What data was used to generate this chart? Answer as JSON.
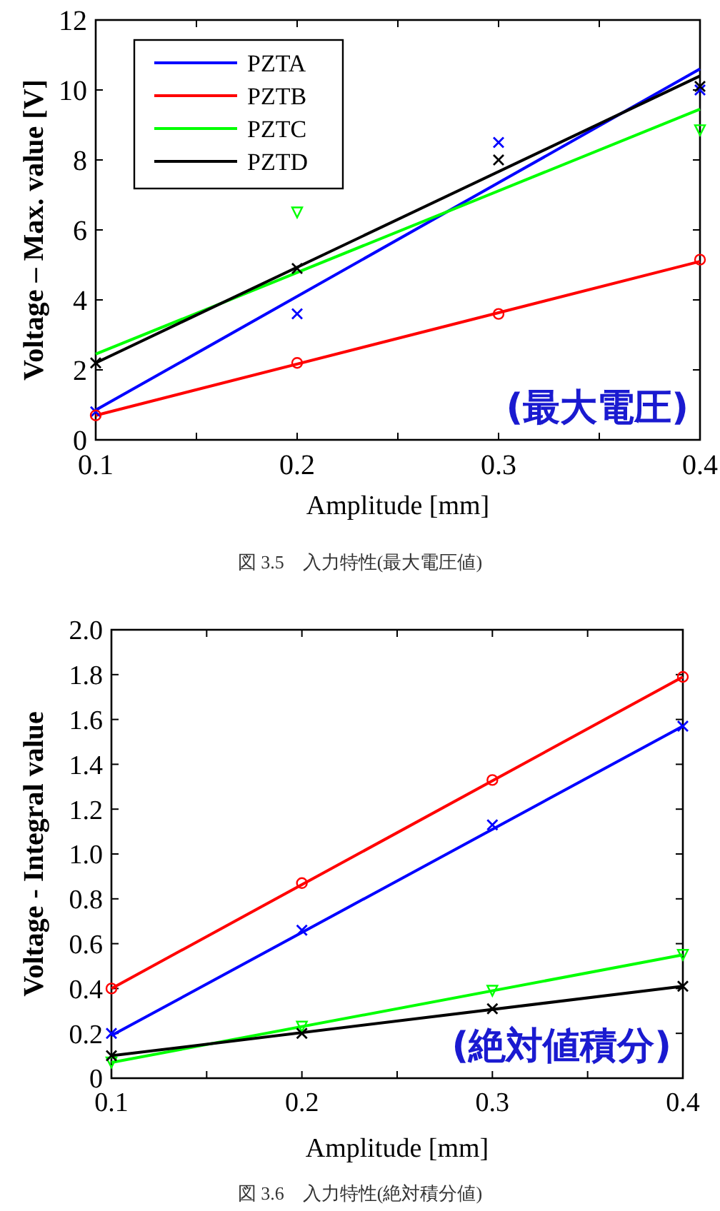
{
  "chart_data": [
    {
      "type": "line",
      "xlabel": "Amplitude [mm]",
      "ylabel": "Voltage – Max. value [V]",
      "xlim": [
        0.1,
        0.4
      ],
      "xticks": [
        0.1,
        {
          "value": 0.15,
          "label": null
        },
        0.2,
        {
          "value": 0.25,
          "label": null
        },
        0.3,
        {
          "value": 0.35,
          "label": null
        },
        0.4
      ],
      "ylim": [
        0,
        12
      ],
      "yticks": [
        0,
        2,
        4,
        6,
        8,
        10,
        12
      ],
      "legend": "top left",
      "annotations": [
        "(最大電圧)",
        "図 3.5　入力特性(最大電圧値)"
      ],
      "series": [
        {
          "name": "PZTA",
          "color": "#0000ff",
          "x": [
            0.1,
            0.4
          ],
          "values": [
            0.85,
            10.6
          ]
        },
        {
          "name": "PZTB",
          "color": "#ff0000",
          "x": [
            0.1,
            0.4
          ],
          "values": [
            0.7,
            5.1
          ]
        },
        {
          "name": "PZTC",
          "color": "#00ff00",
          "x": [
            0.1,
            0.4
          ],
          "values": [
            2.45,
            9.45
          ]
        },
        {
          "name": "PZTD",
          "color": "#000000",
          "x": [
            0.1,
            0.4
          ],
          "values": [
            2.2,
            10.4
          ]
        },
        {
          "type": "scatter",
          "marker": "cross",
          "color": "#0000ff",
          "x": [
            0.1,
            0.2,
            0.3,
            0.4
          ],
          "values": [
            0.8,
            3.6,
            8.5,
            10.0
          ]
        },
        {
          "type": "scatter",
          "marker": "circle",
          "color": "#ff0000",
          "x": [
            0.1,
            0.2,
            0.3,
            0.4
          ],
          "values": [
            0.7,
            2.2,
            3.6,
            5.15
          ]
        },
        {
          "type": "scatter",
          "marker": "triangle",
          "color": "#00ff00",
          "x": [
            0.2,
            0.4
          ],
          "values": [
            6.5,
            8.85
          ]
        },
        {
          "type": "scatter",
          "marker": "cross",
          "color": "#000000",
          "x": [
            0.1,
            0.2,
            0.3,
            0.4
          ],
          "values": [
            2.2,
            4.9,
            8.0,
            10.1
          ]
        }
      ]
    },
    {
      "type": "line",
      "xlabel": "Amplitude [mm]",
      "ylabel": "Voltage - Integral value",
      "xlim": [
        0.1,
        0.4
      ],
      "xticks": [
        0.1,
        {
          "value": 0.15,
          "label": null
        },
        0.2,
        {
          "value": 0.25,
          "label": null
        },
        0.3,
        {
          "value": 0.35,
          "label": null
        },
        0.4
      ],
      "ylim": [
        0,
        2
      ],
      "yticks": [
        0,
        0.2,
        0.4,
        0.6,
        0.8,
        {
          "value": 1,
          "label": "1.0"
        },
        1.2,
        1.4,
        1.6,
        1.8,
        {
          "value": 2,
          "label": "2.0"
        }
      ],
      "annotations": [
        "(絶対値積分)",
        "図 3.6　入力特性(絶対積分値)"
      ],
      "series": [
        {
          "color": "#0000ff",
          "x": [
            0.1,
            0.4
          ],
          "values": [
            0.19,
            1.57
          ]
        },
        {
          "color": "#ff0000",
          "x": [
            0.1,
            0.4
          ],
          "values": [
            0.4,
            1.79
          ]
        },
        {
          "color": "#00ff00",
          "x": [
            0.1,
            0.4
          ],
          "values": [
            0.07,
            0.55
          ]
        },
        {
          "color": "#000000",
          "x": [
            0.1,
            0.4
          ],
          "values": [
            0.1,
            0.41
          ]
        },
        {
          "type": "scatter",
          "marker": "cross",
          "color": "#0000ff",
          "x": [
            0.1,
            0.2,
            0.3,
            0.4
          ],
          "values": [
            0.2,
            0.66,
            1.13,
            1.57
          ]
        },
        {
          "type": "scatter",
          "marker": "circle",
          "color": "#ff0000",
          "x": [
            0.1,
            0.2,
            0.3,
            0.4
          ],
          "values": [
            0.4,
            0.87,
            1.33,
            1.79
          ]
        },
        {
          "type": "scatter",
          "marker": "triangle",
          "color": "#00ff00",
          "x": [
            0.1,
            0.2,
            0.3,
            0.4
          ],
          "values": [
            0.07,
            0.23,
            0.39,
            0.55
          ]
        },
        {
          "type": "scatter",
          "marker": "cross",
          "color": "#000000",
          "x": [
            0.1,
            0.2,
            0.3,
            0.4
          ],
          "values": [
            0.1,
            0.2,
            0.31,
            0.41
          ]
        }
      ]
    }
  ]
}
